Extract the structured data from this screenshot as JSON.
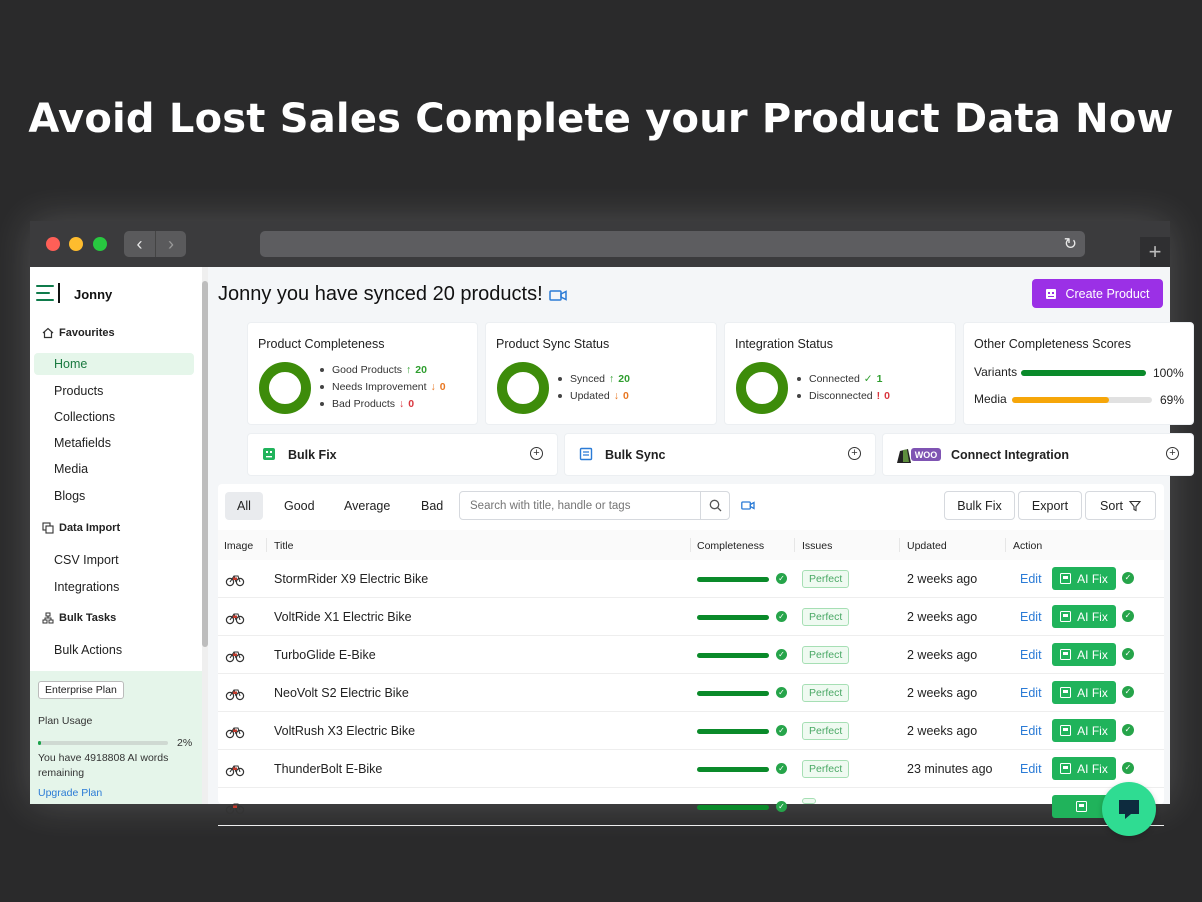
{
  "headline": "Avoid Lost Sales Complete your Product Data Now",
  "sidebar": {
    "brand": "Jonny",
    "favourites_label": "Favourites",
    "items": [
      "Home",
      "Products",
      "Collections",
      "Metafields",
      "Media",
      "Blogs"
    ],
    "data_import_label": "Data Import",
    "data_import_items": [
      "CSV Import",
      "Integrations"
    ],
    "bulk_tasks_label": "Bulk Tasks",
    "bulk_tasks_items": [
      "Bulk Actions"
    ],
    "plan": {
      "badge": "Enterprise Plan",
      "usage_label": "Plan Usage",
      "usage_percent": "2%",
      "usage_fraction": 0.02,
      "words_remaining": "You have 4918808 AI words remaining",
      "upgrade_link": "Upgrade Plan"
    }
  },
  "header": {
    "greeting": "Jonny you have synced 20 products!",
    "create_button": "Create Product"
  },
  "cards": {
    "completeness": {
      "title": "Product Completeness",
      "good_label": "Good Products",
      "good_value": "20",
      "needs_label": "Needs Improvement",
      "needs_value": "0",
      "bad_label": "Bad Products",
      "bad_value": "0"
    },
    "sync": {
      "title": "Product Sync Status",
      "synced_label": "Synced",
      "synced_value": "20",
      "updated_label": "Updated",
      "updated_value": "0"
    },
    "integration": {
      "title": "Integration Status",
      "connected_label": "Connected",
      "connected_value": "1",
      "disconnected_label": "Disconnected",
      "disconnected_value": "0"
    },
    "other": {
      "title": "Other Completeness Scores",
      "variants_label": "Variants",
      "variants_pct": "100%",
      "variants_fraction": 1.0,
      "media_label": "Media",
      "media_pct": "69%",
      "media_fraction": 0.69
    }
  },
  "actions": {
    "bulk_fix": "Bulk Fix",
    "bulk_sync": "Bulk Sync",
    "connect": "Connect Integration",
    "woo_badge": "WOO"
  },
  "table": {
    "filters": [
      "All",
      "Good",
      "Average",
      "Bad"
    ],
    "search_placeholder": "Search with title, handle or tags",
    "buttons": {
      "bulk_fix": "Bulk Fix",
      "export": "Export",
      "sort": "Sort"
    },
    "columns": [
      "Image",
      "Title",
      "Completeness",
      "Issues",
      "Updated",
      "Action"
    ],
    "rows": [
      {
        "title": "StormRider X9 Electric Bike",
        "issue": "Perfect",
        "updated": "2 weeks ago",
        "edit": "Edit",
        "ai_fix": "AI Fix"
      },
      {
        "title": "VoltRide X1 Electric Bike",
        "issue": "Perfect",
        "updated": "2 weeks ago",
        "edit": "Edit",
        "ai_fix": "AI Fix"
      },
      {
        "title": "TurboGlide E-Bike",
        "issue": "Perfect",
        "updated": "2 weeks ago",
        "edit": "Edit",
        "ai_fix": "AI Fix"
      },
      {
        "title": "NeoVolt S2 Electric Bike",
        "issue": "Perfect",
        "updated": "2 weeks ago",
        "edit": "Edit",
        "ai_fix": "AI Fix"
      },
      {
        "title": "VoltRush X3 Electric Bike",
        "issue": "Perfect",
        "updated": "2 weeks ago",
        "edit": "Edit",
        "ai_fix": "AI Fix"
      },
      {
        "title": "ThunderBolt E-Bike",
        "issue": "Perfect",
        "updated": "23 minutes ago",
        "edit": "Edit",
        "ai_fix": "AI Fix"
      },
      {
        "title": "",
        "issue": "",
        "updated": "",
        "edit": "",
        "ai_fix": ""
      }
    ]
  },
  "colors": {
    "accent_purple": "#9b30e6",
    "success_green": "#20b35b",
    "donut_green": "#3d8c0a",
    "media_bar": "#f6a609"
  }
}
